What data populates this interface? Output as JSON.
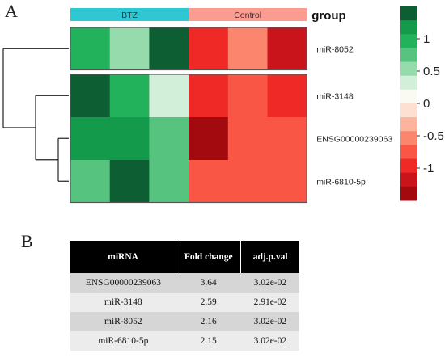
{
  "panels": {
    "a_label": "A",
    "b_label": "B"
  },
  "chart_data": [
    {
      "type": "heatmap",
      "group_title": "group",
      "groups": [
        {
          "label": "BTZ",
          "color": "#2ec7d3",
          "count": 3
        },
        {
          "label": "Control",
          "color": "#fa9c8f",
          "count": 3
        }
      ],
      "rows": [
        "miR-8052",
        "miR-3148",
        "ENSG00000239063",
        "miR-6810-5p"
      ],
      "values": [
        [
          0.95,
          0.55,
          1.45,
          -1.0,
          -0.45,
          -1.25
        ],
        [
          1.45,
          1.05,
          0.3,
          -0.9,
          -0.65,
          -0.95
        ],
        [
          1.15,
          1.25,
          0.7,
          -1.4,
          -0.75,
          -0.7
        ],
        [
          0.7,
          1.45,
          0.75,
          -0.85,
          -0.7,
          -0.75
        ]
      ],
      "row_splits": [
        1
      ],
      "color_scale": {
        "ticks": [
          1,
          0.5,
          0,
          -0.5,
          -1
        ],
        "tick_labels": [
          "1",
          "0.5",
          "0",
          "-0.5",
          "-1"
        ],
        "range": [
          -1.5,
          1.5
        ],
        "colors_high_to_low": [
          "#0d5e33",
          "#139a4b",
          "#22b25b",
          "#56c47f",
          "#96dbac",
          "#d2efd9",
          "#fbfaf2",
          "#fde0d2",
          "#fcb49f",
          "#fb866d",
          "#f95645",
          "#ef2a26",
          "#c8141a",
          "#a20a0f"
        ]
      }
    },
    {
      "type": "table",
      "headers": [
        "miRNA",
        "Fold change",
        "adj.p.val"
      ],
      "rows": [
        [
          "ENSG00000239063",
          "3.64",
          "3.02e-02"
        ],
        [
          "miR-3148",
          "2.59",
          "2.91e-02"
        ],
        [
          "miR-8052",
          "2.16",
          "3.02e-02"
        ],
        [
          "miR-6810-5p",
          "2.15",
          "3.02e-02"
        ]
      ]
    }
  ]
}
